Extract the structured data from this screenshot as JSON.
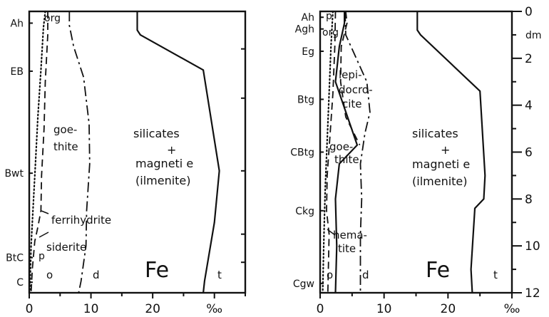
{
  "chart_data": [
    {
      "type": "area",
      "panel": "left",
      "xlabel": "‰",
      "x_tick_labels": [
        "0",
        "10",
        "20",
        "‰"
      ],
      "xlim": [
        0,
        35
      ],
      "ylim": [
        0,
        12
      ],
      "horizons": [
        {
          "label": "Ah",
          "depth": 0.5
        },
        {
          "label": "EB",
          "depth": 2.55
        },
        {
          "label": "Bwt",
          "depth": 6.9
        },
        {
          "label": "BtC",
          "depth": 10.5
        },
        {
          "label": "C",
          "depth": 11.55
        }
      ],
      "series": [
        {
          "name": "o",
          "style": "dotted",
          "points": [
            [
              2.6,
              0
            ],
            [
              2.3,
              0.7
            ],
            [
              1.9,
              2.5
            ],
            [
              1.4,
              4.5
            ],
            [
              1.0,
              6.5
            ],
            [
              0.6,
              8.5
            ],
            [
              0.3,
              10.0
            ],
            [
              0.1,
              12
            ]
          ]
        },
        {
          "name": "",
          "style": "dashed",
          "points": [
            [
              3.0,
              0
            ],
            [
              3.0,
              1.0
            ],
            [
              2.6,
              3.0
            ],
            [
              2.4,
              5.0
            ],
            [
              2.0,
              7.0
            ],
            [
              1.9,
              8.5
            ],
            [
              1.4,
              9.2
            ],
            [
              0.9,
              9.8
            ],
            [
              0.5,
              11.0
            ],
            [
              0.3,
              12
            ]
          ]
        },
        {
          "name": "d",
          "style": "dashdot",
          "points": [
            [
              6.5,
              0
            ],
            [
              6.5,
              0.6
            ],
            [
              7.2,
              1.5
            ],
            [
              8.8,
              2.8
            ],
            [
              9.7,
              4.8
            ],
            [
              9.8,
              6.5
            ],
            [
              9.3,
              8.5
            ],
            [
              9.2,
              10.0
            ],
            [
              8.4,
              11.5
            ],
            [
              8.0,
              12
            ]
          ]
        },
        {
          "name": "t",
          "style": "solid",
          "points": [
            [
              17.5,
              0
            ],
            [
              17.5,
              0.8
            ],
            [
              18.0,
              1.0
            ],
            [
              28.2,
              2.5
            ],
            [
              30.8,
              6.8
            ],
            [
              30.0,
              9.0
            ],
            [
              28.4,
              11.5
            ],
            [
              28.2,
              12
            ]
          ]
        }
      ],
      "labels": {
        "org": "org",
        "goethite_1": "goe-",
        "goethite_2": "thite",
        "silicates": "silicates",
        "plus": "+",
        "magnetite": "magneti e",
        "ilmenite": "(ilmenite)",
        "ferrihydrite": "ferrihydrite",
        "siderite": "siderite",
        "p": "p",
        "o": "o",
        "d": "d",
        "t": "t",
        "fe": "Fe"
      }
    },
    {
      "type": "area",
      "panel": "right",
      "xlabel": "‰",
      "ylabel": "dm",
      "x_tick_labels": [
        "0",
        "10",
        "20",
        "‰"
      ],
      "y_ticks": [
        0,
        2,
        4,
        6,
        8,
        10,
        12
      ],
      "xlim": [
        0,
        30
      ],
      "ylim": [
        0,
        12
      ],
      "horizons": [
        {
          "label": "Ah",
          "depth": 0.25
        },
        {
          "label": "Agh",
          "depth": 0.75
        },
        {
          "label": "Eg",
          "depth": 1.7
        },
        {
          "label": "Btg",
          "depth": 3.75
        },
        {
          "label": "CBtg",
          "depth": 6.0
        },
        {
          "label": "Ckg",
          "depth": 8.5
        },
        {
          "label": "Cgw",
          "depth": 11.6
        }
      ],
      "series": [
        {
          "name": "o",
          "style": "dotted",
          "points": [
            [
              2.0,
              0
            ],
            [
              1.7,
              1.5
            ],
            [
              1.4,
              3.5
            ],
            [
              1.1,
              5.5
            ],
            [
              0.8,
              7.5
            ],
            [
              0.6,
              9.5
            ],
            [
              0.4,
              12
            ]
          ]
        },
        {
          "name": "",
          "style": "dashed",
          "points": [
            [
              2.4,
              0
            ],
            [
              2.3,
              1.5
            ],
            [
              2.0,
              3.5
            ],
            [
              1.5,
              5.5
            ],
            [
              1.1,
              7.0
            ],
            [
              1.0,
              8.5
            ],
            [
              1.4,
              9.5
            ],
            [
              1.2,
              12
            ]
          ]
        },
        {
          "name": "",
          "style": "solid",
          "points": [
            [
              3.8,
              0
            ],
            [
              3.8,
              0.5
            ],
            [
              3.0,
              1.5
            ],
            [
              2.4,
              3.0
            ],
            [
              5.8,
              5.7
            ],
            [
              3.0,
              6.5
            ],
            [
              2.4,
              8.0
            ],
            [
              2.6,
              10.0
            ],
            [
              2.4,
              12
            ]
          ]
        },
        {
          "name": "",
          "style": "dashed",
          "points": [
            [
              4.0,
              0
            ],
            [
              4.2,
              0.5
            ],
            [
              3.3,
              1.5
            ],
            [
              3.2,
              3.0
            ],
            [
              4.0,
              4.5
            ],
            [
              6.2,
              5.7
            ]
          ]
        },
        {
          "name": "d",
          "style": "dashdot",
          "points": [
            [
              3.9,
              0
            ],
            [
              4.0,
              1.0
            ],
            [
              7.3,
              3.0
            ],
            [
              7.8,
              4.3
            ],
            [
              7.0,
              5.2
            ],
            [
              6.3,
              6.5
            ],
            [
              6.5,
              8.0
            ],
            [
              6.3,
              9.5
            ],
            [
              6.3,
              12
            ]
          ]
        },
        {
          "name": "t",
          "style": "solid",
          "points": [
            [
              15.2,
              0
            ],
            [
              15.2,
              0.8
            ],
            [
              15.7,
              1.0
            ],
            [
              25.0,
              3.4
            ],
            [
              25.8,
              7.0
            ],
            [
              25.6,
              8.0
            ],
            [
              24.2,
              8.4
            ],
            [
              23.6,
              11.0
            ],
            [
              23.8,
              12
            ]
          ]
        }
      ],
      "labels": {
        "p": "p",
        "org": "org",
        "lepidocrocite_1": "lepi-",
        "lepidocrocite_2": "docro-",
        "lepidocrocite_3": "cite",
        "goethite_1": "goe-",
        "goethite_2": "thite",
        "silicates": "silicates",
        "plus": "+",
        "magnetite": "magneti e",
        "ilmenite": "(ilmenite)",
        "hematite_1": "hema-",
        "hematite_2": "tite",
        "o": "o",
        "d": "d",
        "t": "t",
        "fe": "Fe"
      }
    }
  ]
}
